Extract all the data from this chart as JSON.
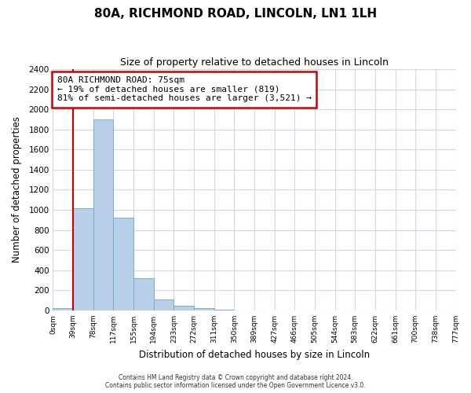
{
  "title": "80A, RICHMOND ROAD, LINCOLN, LN1 1LH",
  "subtitle": "Size of property relative to detached houses in Lincoln",
  "xlabel": "Distribution of detached houses by size in Lincoln",
  "ylabel": "Number of detached properties",
  "bin_labels": [
    "0sqm",
    "39sqm",
    "78sqm",
    "117sqm",
    "155sqm",
    "194sqm",
    "233sqm",
    "272sqm",
    "311sqm",
    "350sqm",
    "389sqm",
    "427sqm",
    "466sqm",
    "505sqm",
    "544sqm",
    "583sqm",
    "622sqm",
    "661sqm",
    "700sqm",
    "738sqm",
    "777sqm"
  ],
  "bar_values": [
    20,
    1020,
    1900,
    920,
    320,
    110,
    50,
    25,
    10,
    0,
    0,
    0,
    0,
    0,
    0,
    0,
    0,
    0,
    0,
    0
  ],
  "bar_color": "#b8d0e8",
  "bar_edge_color": "#7aaad0",
  "ylim": [
    0,
    2400
  ],
  "yticks": [
    0,
    200,
    400,
    600,
    800,
    1000,
    1200,
    1400,
    1600,
    1800,
    2000,
    2200,
    2400
  ],
  "annotation_line0": "80A RICHMOND ROAD: 75sqm",
  "annotation_line1": "← 19% of detached houses are smaller (819)",
  "annotation_line2": "81% of semi-detached houses are larger (3,521) →",
  "annotation_box_color": "#ffffff",
  "annotation_box_edge": "#cc0000",
  "vline_color": "#cc0000",
  "vline_x": 1.0,
  "footer1": "Contains HM Land Registry data © Crown copyright and database right 2024.",
  "footer2": "Contains public sector information licensed under the Open Government Licence v3.0.",
  "title_fontsize": 11,
  "subtitle_fontsize": 9,
  "background_color": "#ffffff",
  "grid_color": "#d0d8e8"
}
